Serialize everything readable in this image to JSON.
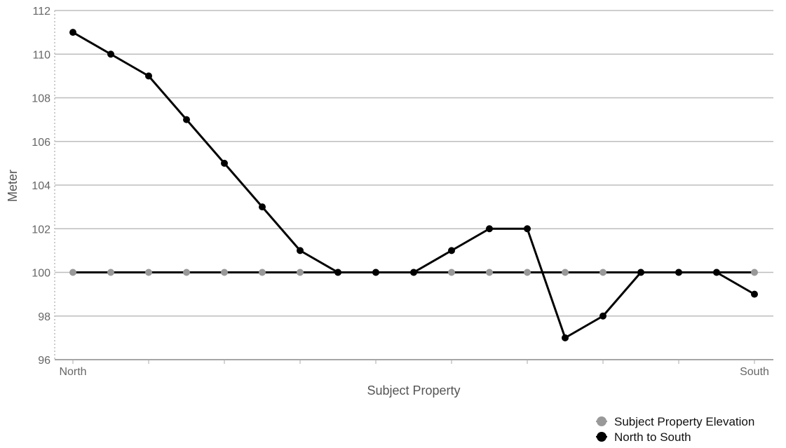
{
  "chart_data": {
    "type": "line",
    "title": "",
    "xlabel": "Subject Property",
    "ylabel": "Meter",
    "x_start_label": "North",
    "x_end_label": "South",
    "ylim": [
      96,
      112
    ],
    "yticks": [
      96,
      98,
      100,
      102,
      104,
      106,
      108,
      110,
      112
    ],
    "grid": true,
    "legend_position": "bottom-right",
    "points_count": 19,
    "series": [
      {
        "name": "Subject Property Elevation",
        "color": "#999999",
        "line_color": "#000000",
        "values": [
          100,
          100,
          100,
          100,
          100,
          100,
          100,
          100,
          100,
          100,
          100,
          100,
          100,
          100,
          100,
          100,
          100,
          100,
          100
        ]
      },
      {
        "name": "North to South",
        "color": "#000000",
        "line_color": "#000000",
        "values": [
          111,
          110,
          109,
          107,
          105,
          103,
          101,
          100,
          100,
          100,
          101,
          102,
          102,
          97,
          98,
          100,
          100,
          100,
          99
        ]
      }
    ]
  }
}
